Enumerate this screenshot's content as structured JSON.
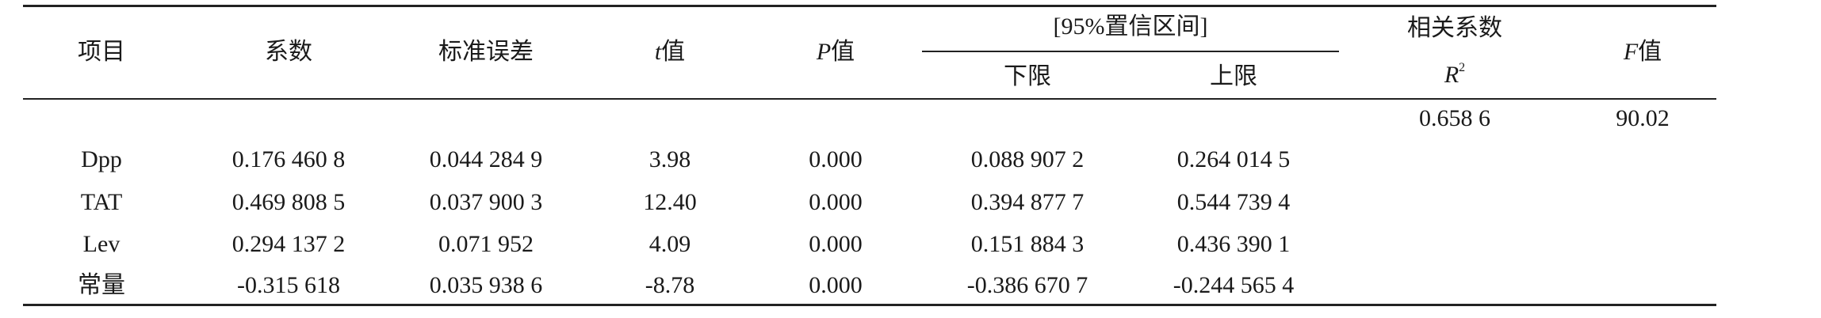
{
  "table": {
    "headers": {
      "item": "项目",
      "coef": "系数",
      "std_err": "标准误差",
      "t_italic": "t",
      "t_suffix": "值",
      "p_italic": "P",
      "p_suffix": "值",
      "ci_group": "[95%置信区间]",
      "ci_lower": "下限",
      "ci_upper": "上限",
      "r2_label": "相关系数",
      "r2_symbol": "R",
      "r2_sup": "2",
      "f_italic": "F",
      "f_suffix": "值"
    },
    "summary": {
      "r2": "0.658 6",
      "f": "90.02"
    },
    "rows": [
      {
        "item": "Dpp",
        "coef": "0.176 460 8",
        "std_err": "0.044 284 9",
        "t": "3.98",
        "p": "0.000",
        "lower": "0.088 907 2",
        "upper": "0.264 014 5"
      },
      {
        "item": "TAT",
        "coef": "0.469 808 5",
        "std_err": "0.037 900 3",
        "t": "12.40",
        "p": "0.000",
        "lower": "0.394 877 7",
        "upper": "0.544 739 4"
      },
      {
        "item": "Lev",
        "coef": "0.294 137 2",
        "std_err": "0.071 952",
        "t": "4.09",
        "p": "0.000",
        "lower": "0.151 884 3",
        "upper": "0.436 390 1"
      },
      {
        "item": "常量",
        "coef": "-0.315 618",
        "std_err": "0.035 938 6",
        "t": "-8.78",
        "p": "0.000",
        "lower": "-0.386 670 7",
        "upper": "-0.244 565 4"
      }
    ]
  }
}
